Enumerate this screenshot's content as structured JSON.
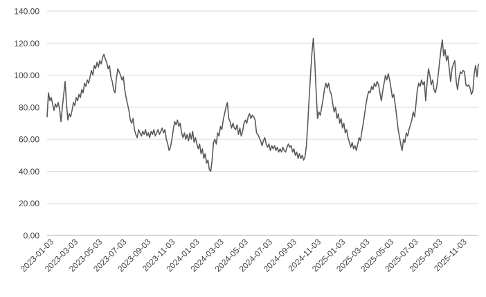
{
  "chart_data": {
    "type": "line",
    "title": "",
    "xlabel": "",
    "ylabel": "",
    "legend": "none",
    "grid": "horizontal",
    "background_color": "#FFFFFF",
    "line_color": "#595959",
    "line_width": 1.6,
    "gridline_color": "#D9D9D9",
    "axis_line_color": "#BFBFBF",
    "label_color": "#3F3F3F",
    "ylim": [
      0,
      140
    ],
    "y_tick_values": [
      0,
      20,
      40,
      60,
      80,
      100,
      120,
      140
    ],
    "y_tick_labels": [
      "0.00",
      "20.00",
      "40.00",
      "60.00",
      "80.00",
      "100.00",
      "120.00",
      "140.00"
    ],
    "x_tick_labels": [
      "2023-01-03",
      "2023-03-03",
      "2023-05-03",
      "2023-07-03",
      "2023-09-03",
      "2023-11-03",
      "2024-01-03",
      "2024-03-03",
      "2024-05-03",
      "2024-07-03",
      "2024-09-03",
      "2024-11-03",
      "2025-01-03",
      "2025-03-03",
      "2025-05-03",
      "2025-07-03",
      "2025-09-03",
      "2025-11-03"
    ],
    "x_tick_rotation_deg": -45,
    "values": [
      74,
      89,
      84,
      86,
      82,
      78,
      82,
      80,
      83,
      79,
      71,
      80,
      88,
      96,
      82,
      72,
      76,
      74,
      78,
      83,
      81,
      86,
      84,
      88,
      86,
      91,
      89,
      95,
      93,
      97,
      95,
      99,
      103,
      100,
      106,
      104,
      108,
      105,
      109,
      107,
      111,
      113,
      110,
      108,
      104,
      106,
      99,
      96,
      91,
      89,
      98,
      104,
      102,
      100,
      97,
      99,
      91,
      86,
      82,
      78,
      72,
      70,
      73,
      66,
      63,
      61,
      66,
      64,
      62,
      65,
      63,
      66,
      62,
      64,
      61,
      65,
      63,
      66,
      62,
      64,
      66,
      63,
      65,
      67,
      64,
      66,
      60,
      57,
      53,
      55,
      60,
      66,
      71,
      69,
      72,
      68,
      70,
      64,
      61,
      64,
      60,
      63,
      59,
      64,
      60,
      65,
      58,
      61,
      57,
      54,
      57,
      51,
      54,
      48,
      51,
      45,
      47,
      41,
      40,
      47,
      58,
      60,
      57,
      64,
      62,
      68,
      66,
      72,
      76,
      80,
      83,
      73,
      71,
      67,
      70,
      67,
      66,
      69,
      63,
      67,
      62,
      65,
      70,
      72,
      70,
      74,
      76,
      73,
      75,
      74,
      72,
      64,
      63,
      61,
      59,
      56,
      59,
      61,
      57,
      55,
      57,
      53,
      56,
      54,
      56,
      53,
      55,
      52,
      54,
      52,
      55,
      53,
      52,
      55,
      57,
      55,
      56,
      52,
      54,
      50,
      52,
      48,
      51,
      48,
      50,
      47,
      49,
      56,
      70,
      86,
      101,
      114,
      123,
      109,
      90,
      73,
      77,
      75,
      80,
      85,
      91,
      95,
      92,
      95,
      90,
      88,
      82,
      77,
      80,
      73,
      76,
      70,
      73,
      67,
      70,
      64,
      66,
      61,
      58,
      55,
      58,
      54,
      56,
      53,
      57,
      61,
      59,
      65,
      70,
      76,
      82,
      87,
      90,
      89,
      93,
      91,
      95,
      93,
      96,
      94,
      89,
      84,
      90,
      95,
      100,
      97,
      101,
      97,
      92,
      86,
      88,
      82,
      75,
      67,
      62,
      57,
      53,
      60,
      58,
      64,
      62,
      66,
      69,
      72,
      77,
      74,
      82,
      91,
      95,
      93,
      97,
      94,
      96,
      84,
      95,
      104,
      100,
      94,
      97,
      91,
      89,
      93,
      100,
      108,
      116,
      122,
      112,
      116,
      109,
      112,
      104,
      96,
      104,
      107,
      109,
      96,
      91,
      98,
      102,
      101,
      103,
      102,
      94,
      93,
      94,
      92,
      88,
      90,
      101,
      106,
      99,
      107
    ]
  }
}
